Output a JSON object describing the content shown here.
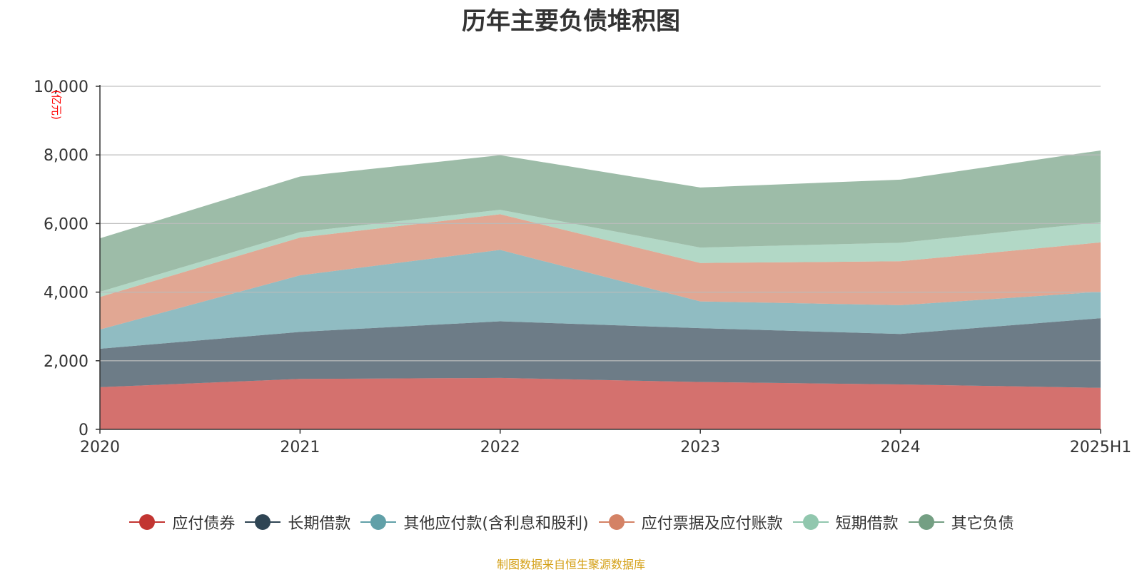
{
  "chart_data": {
    "type": "area",
    "stacked": true,
    "title": "历年主要负债堆积图",
    "ylabel": "(亿元)",
    "xlabel": "",
    "categories": [
      "2020",
      "2021",
      "2022",
      "2023",
      "2024",
      "2025H1"
    ],
    "ylim": [
      0,
      10000
    ],
    "yticks": [
      "0",
      "2,000",
      "4,000",
      "6,000",
      "8,000",
      "10,000"
    ],
    "grid": true,
    "legend_position": "bottom",
    "series": [
      {
        "name": "应付债券",
        "color": "#c23531",
        "values": [
          1230,
          1470,
          1500,
          1380,
          1310,
          1210
        ]
      },
      {
        "name": "长期借款",
        "color": "#2f4554",
        "values": [
          1120,
          1370,
          1650,
          1570,
          1470,
          2030
        ]
      },
      {
        "name": "其他应付款(含利息和股利)",
        "color": "#61a0a8",
        "values": [
          560,
          1650,
          2080,
          780,
          840,
          770
        ]
      },
      {
        "name": "应付票据及应付账款",
        "color": "#d48265",
        "values": [
          950,
          1100,
          1040,
          1120,
          1280,
          1440
        ]
      },
      {
        "name": "短期借款",
        "color": "#91c7ae",
        "values": [
          150,
          160,
          130,
          450,
          540,
          590
        ]
      },
      {
        "name": "其它负债",
        "color": "#749f83",
        "values": [
          1560,
          1620,
          1590,
          1750,
          1840,
          2090
        ]
      }
    ]
  },
  "source_text": "制图数据来自恒生聚源数据库",
  "source_color": "#d4a017",
  "axis_color": "#333333",
  "grid_color": "#bbbbbb",
  "ylabel_color": "#ff0000"
}
